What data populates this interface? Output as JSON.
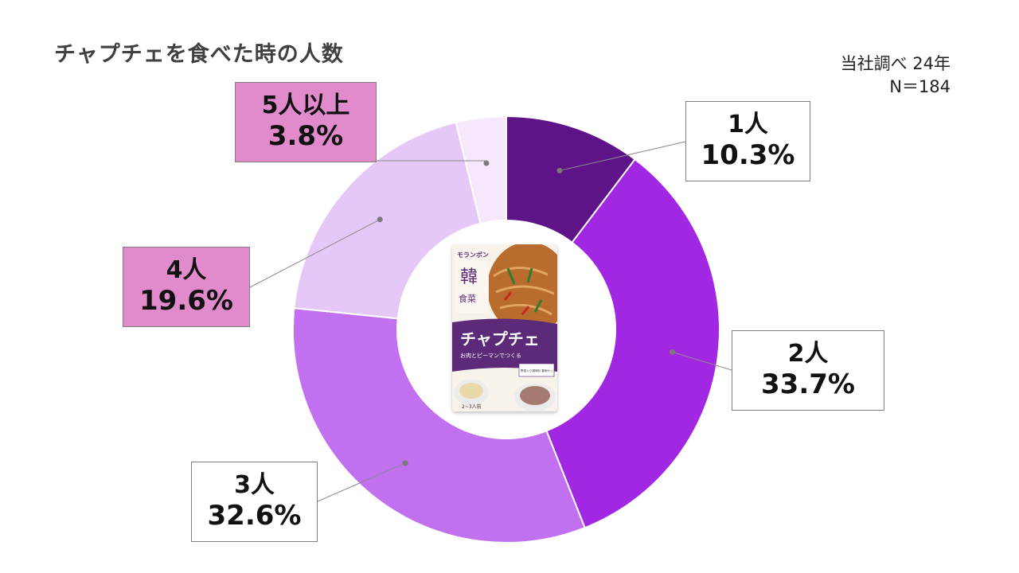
{
  "title": "チャプチェを食べた時の人数",
  "note": {
    "source": "当社調べ 24年",
    "sample": "N＝184"
  },
  "product": {
    "brand": "モランボン",
    "series_char1": "韓",
    "series_char2": "食菜",
    "name": "チャプチェ",
    "subtitle": "お肉とピーマンでつくる",
    "kit_note": "野菜入り調味料 春雨セット",
    "servings": "2~3人前",
    "colors": {
      "purple": "#5c2a78",
      "noodle": "#b86c2d",
      "plate": "#ececec"
    }
  },
  "chart_data": {
    "type": "pie",
    "donut": true,
    "start_angle_deg": 0,
    "direction": "clockwise",
    "slices": [
      {
        "label": "1人",
        "value": 10.3,
        "value_label": "10.3%",
        "color": "#5e1389",
        "label_box_color": "#ffffff"
      },
      {
        "label": "2人",
        "value": 33.7,
        "value_label": "33.7%",
        "color": "#a227e2",
        "label_box_color": "#ffffff"
      },
      {
        "label": "3人",
        "value": 32.6,
        "value_label": "32.6%",
        "color": "#c170ef",
        "label_box_color": "#ffffff"
      },
      {
        "label": "4人",
        "value": 19.6,
        "value_label": "19.6%",
        "color": "#e6c8f8",
        "label_box_color": "#e18bcd"
      },
      {
        "label": "5人以上",
        "value": 3.8,
        "value_label": "3.8%",
        "color": "#f6e8fc",
        "label_box_color": "#e18bcd"
      }
    ],
    "title": "チャプチェを食べた時の人数",
    "legend": "none"
  }
}
